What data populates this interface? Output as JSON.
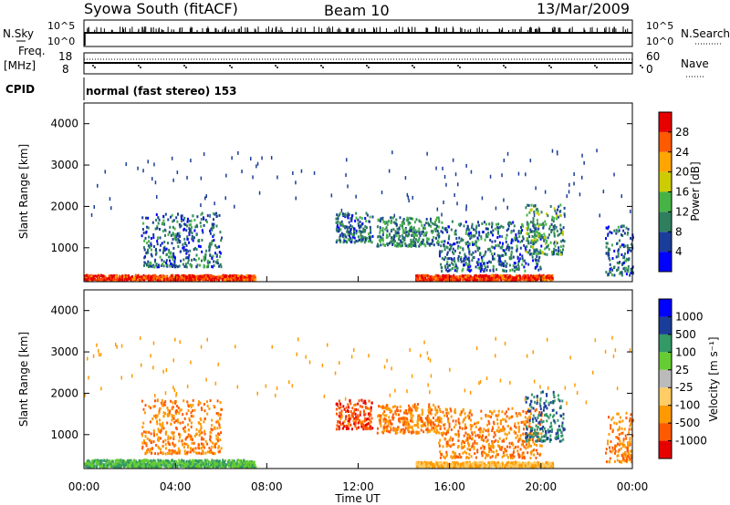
{
  "header": {
    "title": "Syowa South (fitACF)",
    "beam": "Beam 10",
    "date": "13/Mar/2009"
  },
  "top_panels": {
    "nsky_label": "N.Sky",
    "nsky_ticks": [
      "10^5",
      "10^0"
    ],
    "nsearch_label": "N.Search",
    "nsearch_ticks": [
      "10^5",
      "10^0"
    ],
    "freq_label_1": "Freq.",
    "freq_label_2": "[MHz]",
    "freq_ticks": [
      "18",
      "8"
    ],
    "nave_label": "Nave",
    "nave_ticks": [
      "60",
      "0"
    ],
    "cpid_label": "CPID",
    "cpid_value": "normal (fast stereo) 153"
  },
  "colors": {
    "power_scale": [
      "#0000ff",
      "#1a3d99",
      "#2f7f5f",
      "#47b347",
      "#cccc00",
      "#ffa500",
      "#ff5a00",
      "#e60000"
    ],
    "velocity_scale": [
      "#e60000",
      "#ff5a00",
      "#ff9900",
      "#ffcc66",
      "#bbbbbb",
      "#66cc33",
      "#339966",
      "#1a3d99",
      "#0000ff"
    ]
  },
  "chart_data": [
    {
      "type": "heatmap",
      "panel": "power",
      "ylabel": "Slant Range [km]",
      "yticks": [
        "1000",
        "2000",
        "3000",
        "4000"
      ],
      "ylim": [
        180,
        4500
      ],
      "xlim": [
        0,
        24
      ],
      "colorbar_label": "Power [dB]",
      "colorbar_ticks": [
        "4",
        "8",
        "12",
        "16",
        "20",
        "24",
        "28"
      ],
      "scatter_regions": [
        {
          "t": [
            0.0,
            7.5
          ],
          "r": [
            180,
            300
          ],
          "power": 28
        },
        {
          "t": [
            2.5,
            6.0
          ],
          "r": [
            500,
            1800
          ],
          "power": 8
        },
        {
          "t": [
            11.0,
            12.6
          ],
          "r": [
            1100,
            1800
          ],
          "power": 8
        },
        {
          "t": [
            12.8,
            15.5
          ],
          "r": [
            1000,
            1700
          ],
          "power": 10
        },
        {
          "t": [
            15.5,
            20.0
          ],
          "r": [
            400,
            1600
          ],
          "power": 8
        },
        {
          "t": [
            19.3,
            21.0
          ],
          "r": [
            800,
            2000
          ],
          "power": 12
        },
        {
          "t": [
            22.8,
            24.0
          ],
          "r": [
            300,
            1500
          ],
          "power": 8
        },
        {
          "t": [
            14.5,
            20.5
          ],
          "r": [
            180,
            300
          ],
          "power": 28
        }
      ]
    },
    {
      "type": "heatmap",
      "panel": "velocity",
      "ylabel": "Slant Range [km]",
      "yticks": [
        "1000",
        "2000",
        "3000",
        "4000"
      ],
      "ylim": [
        180,
        4500
      ],
      "xlim": [
        0,
        24
      ],
      "xticks": [
        "00:00",
        "04:00",
        "08:00",
        "12:00",
        "16:00",
        "20:00",
        "00:00"
      ],
      "xlabel": "Time UT",
      "colorbar_label": "Velocity [m s⁻¹]",
      "colorbar_ticks": [
        "-1000",
        "-500",
        "-100",
        "-25",
        "25",
        "100",
        "500",
        "1000"
      ],
      "scatter_regions": [
        {
          "t": [
            0.0,
            7.5
          ],
          "r": [
            180,
            350
          ],
          "velocity": 100
        },
        {
          "t": [
            2.5,
            6.0
          ],
          "r": [
            500,
            1800
          ],
          "velocity": -500
        },
        {
          "t": [
            11.0,
            12.6
          ],
          "r": [
            1100,
            1800
          ],
          "velocity": -1000
        },
        {
          "t": [
            12.8,
            15.5
          ],
          "r": [
            1000,
            1700
          ],
          "velocity": -500
        },
        {
          "t": [
            15.5,
            20.0
          ],
          "r": [
            400,
            1600
          ],
          "velocity": -500
        },
        {
          "t": [
            19.3,
            21.0
          ],
          "r": [
            800,
            2000
          ],
          "velocity": 500
        },
        {
          "t": [
            22.8,
            24.0
          ],
          "r": [
            300,
            1500
          ],
          "velocity": -500
        },
        {
          "t": [
            14.5,
            20.5
          ],
          "r": [
            180,
            300
          ],
          "velocity": -100
        }
      ]
    }
  ]
}
